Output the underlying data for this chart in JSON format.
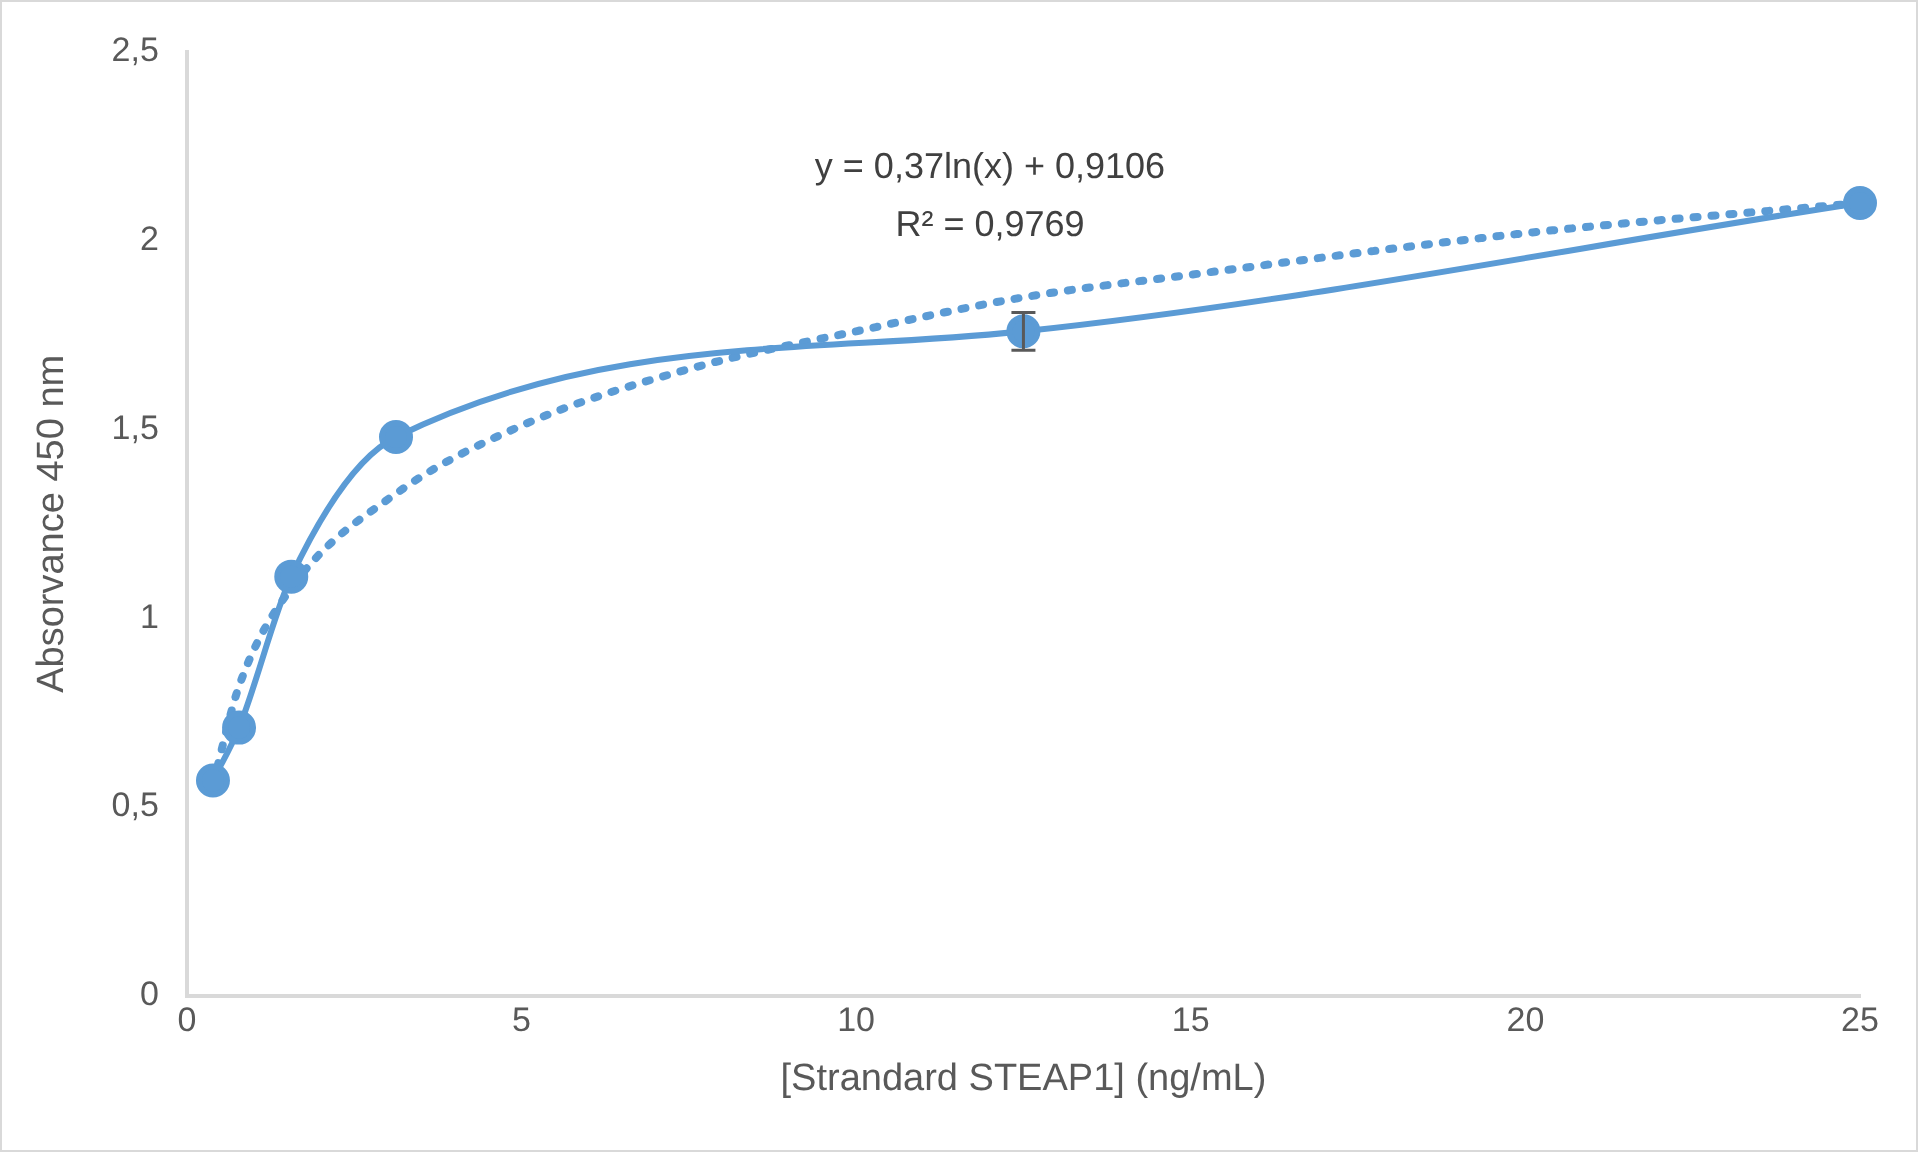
{
  "chart_data": {
    "type": "line",
    "xlabel": "[Strandard STEAP1] (ng/mL)",
    "ylabel": "Absorvance 450 nm",
    "xlim": [
      0,
      25
    ],
    "xticks": [
      0,
      5,
      10,
      15,
      20,
      25
    ],
    "ylim": [
      0,
      2.5
    ],
    "yticks": [
      {
        "value": 0,
        "label": "0"
      },
      {
        "value": 0.5,
        "label": "0,5"
      },
      {
        "value": 1,
        "label": "1"
      },
      {
        "value": 1.5,
        "label": "1,5"
      },
      {
        "value": 2,
        "label": "2"
      },
      {
        "value": 2.5,
        "label": "2,5"
      }
    ],
    "grid": false,
    "legend": false,
    "annotations": [
      "y = 0,37ln(x) + 0,9106",
      "R² = 0,9769"
    ],
    "series": [
      {
        "color": "#5b9bd5",
        "marker": "circle",
        "line_style": "solid",
        "x": [
          0.39,
          0.78,
          1.56,
          3.125,
          12.5,
          25
        ],
        "values": [
          0.57,
          0.71,
          1.11,
          1.48,
          1.76,
          2.1
        ],
        "errors": [
          null,
          null,
          null,
          null,
          0.05,
          null
        ]
      },
      {
        "color": "#5b9bd5",
        "marker": "none",
        "line_style": "dotted",
        "x": [
          0.39,
          0.78,
          1.56,
          3.125,
          5,
          7.5,
          10,
          12.5,
          15,
          20,
          25
        ],
        "values": [
          0.56,
          0.82,
          1.08,
          1.33,
          1.51,
          1.66,
          1.76,
          1.85,
          1.91,
          2.02,
          2.1
        ]
      }
    ]
  }
}
